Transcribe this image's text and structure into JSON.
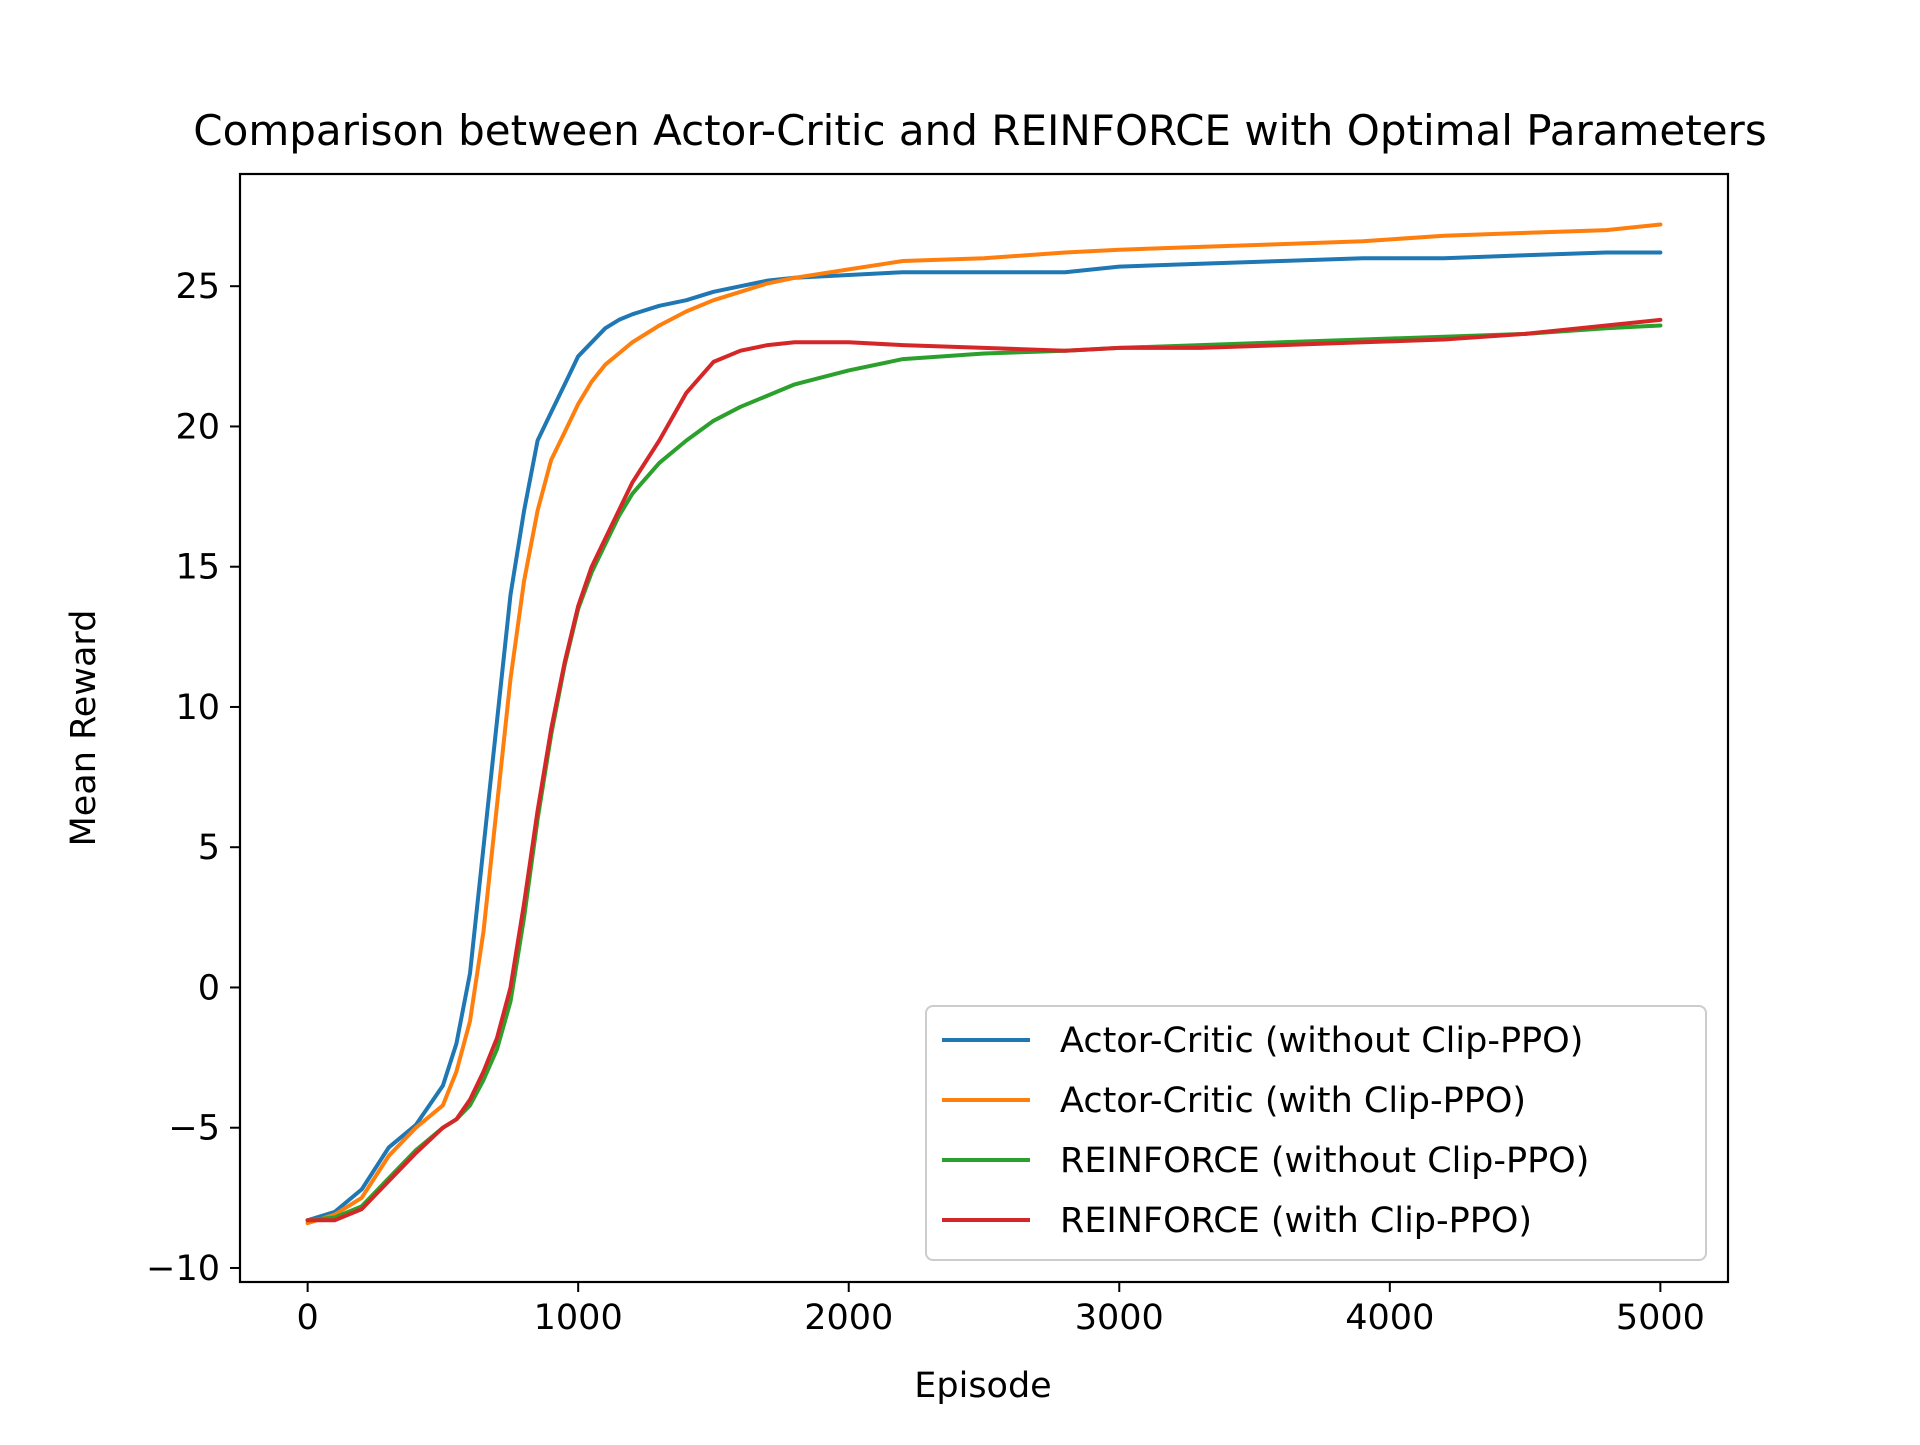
{
  "chart_data": {
    "type": "line",
    "title": "Comparison between Actor-Critic and REINFORCE with Optimal Parameters",
    "xlabel": "Episode",
    "ylabel": "Mean Reward",
    "xlim": [
      -250,
      5250
    ],
    "ylim": [
      -10.5,
      29.0
    ],
    "xticks": [
      0,
      1000,
      2000,
      3000,
      4000,
      5000
    ],
    "xtick_labels": [
      "0",
      "1000",
      "2000",
      "3000",
      "4000",
      "5000"
    ],
    "yticks": [
      -10,
      -5,
      0,
      5,
      10,
      15,
      20,
      25
    ],
    "ytick_labels": [
      "−10",
      "−5",
      "0",
      "5",
      "10",
      "15",
      "20",
      "25"
    ],
    "grid": false,
    "legend_position": "lower-right",
    "x": [
      0,
      100,
      200,
      300,
      400,
      500,
      550,
      600,
      650,
      700,
      750,
      800,
      850,
      900,
      950,
      1000,
      1050,
      1100,
      1150,
      1200,
      1300,
      1400,
      1500,
      1600,
      1700,
      1800,
      2000,
      2200,
      2500,
      2800,
      3000,
      3300,
      3600,
      3900,
      4200,
      4500,
      4800,
      5000
    ],
    "series": [
      {
        "name": "Actor-Critic (without Clip-PPO)",
        "color": "#1f77b4",
        "values": [
          -8.3,
          -8.0,
          -7.2,
          -5.7,
          -4.9,
          -3.5,
          -2.0,
          0.5,
          5.0,
          9.5,
          14.0,
          17.0,
          19.5,
          20.5,
          21.5,
          22.5,
          23.0,
          23.5,
          23.8,
          24.0,
          24.3,
          24.5,
          24.8,
          25.0,
          25.2,
          25.3,
          25.4,
          25.5,
          25.5,
          25.5,
          25.7,
          25.8,
          25.9,
          26.0,
          26.0,
          26.1,
          26.2,
          26.2
        ]
      },
      {
        "name": "Actor-Critic (with Clip-PPO)",
        "color": "#ff7f0e",
        "values": [
          -8.4,
          -8.1,
          -7.5,
          -6.0,
          -5.0,
          -4.2,
          -3.0,
          -1.2,
          2.0,
          6.5,
          11.0,
          14.5,
          17.0,
          18.8,
          19.8,
          20.8,
          21.6,
          22.2,
          22.6,
          23.0,
          23.6,
          24.1,
          24.5,
          24.8,
          25.1,
          25.3,
          25.6,
          25.9,
          26.0,
          26.2,
          26.3,
          26.4,
          26.5,
          26.6,
          26.8,
          26.9,
          27.0,
          27.2
        ]
      },
      {
        "name": "REINFORCE (without Clip-PPO)",
        "color": "#2ca02c",
        "values": [
          -8.3,
          -8.2,
          -7.8,
          -6.8,
          -5.8,
          -5.0,
          -4.7,
          -4.2,
          -3.3,
          -2.2,
          -0.5,
          2.5,
          6.0,
          9.0,
          11.5,
          13.5,
          14.8,
          15.8,
          16.8,
          17.6,
          18.7,
          19.5,
          20.2,
          20.7,
          21.1,
          21.5,
          22.0,
          22.4,
          22.6,
          22.7,
          22.8,
          22.9,
          23.0,
          23.1,
          23.2,
          23.3,
          23.5,
          23.6
        ]
      },
      {
        "name": "REINFORCE (with Clip-PPO)",
        "color": "#d62728",
        "values": [
          -8.3,
          -8.3,
          -7.9,
          -6.9,
          -5.9,
          -5.0,
          -4.7,
          -4.0,
          -3.0,
          -1.8,
          0.0,
          3.0,
          6.3,
          9.2,
          11.6,
          13.6,
          15.0,
          16.0,
          17.0,
          18.0,
          19.5,
          21.2,
          22.3,
          22.7,
          22.9,
          23.0,
          23.0,
          22.9,
          22.8,
          22.7,
          22.8,
          22.8,
          22.9,
          23.0,
          23.1,
          23.3,
          23.6,
          23.8
        ]
      }
    ]
  }
}
